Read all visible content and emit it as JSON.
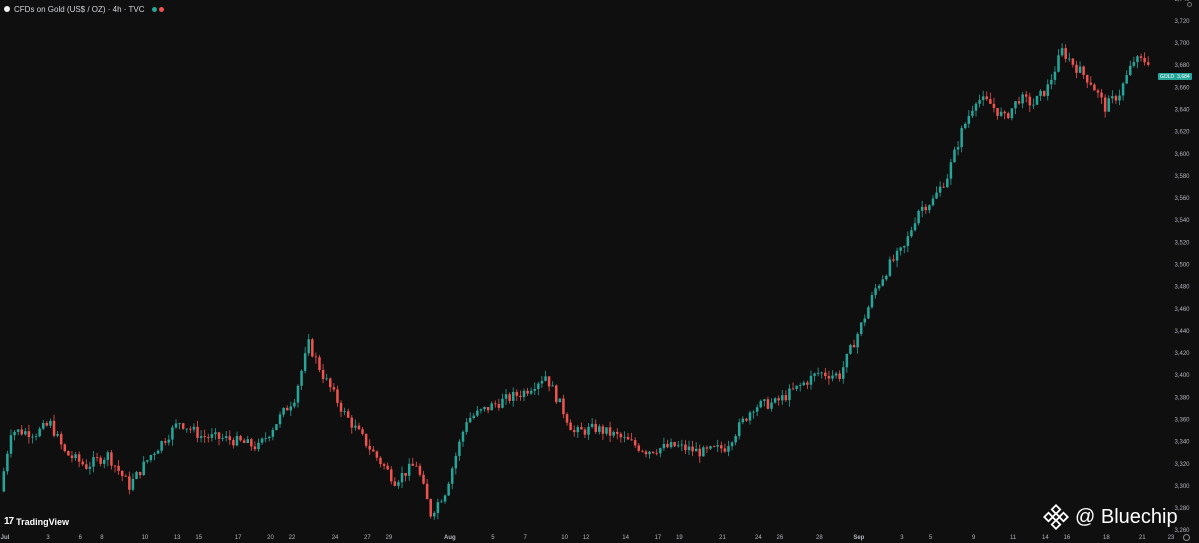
{
  "header": {
    "title": "CFDs on Gold (US$ / OZ) · 4h · TVC",
    "colors": [
      "#26a69a",
      "#ef5350"
    ]
  },
  "footer": {
    "tv_mark": "17",
    "tv_brand": "TradingView",
    "watermark": "@ Bluechip"
  },
  "price_tag": {
    "symbol": "GOLD",
    "value": "3,684"
  },
  "icons": [
    "scroll-icon",
    "gear-icon",
    "binance-diamond-icon"
  ],
  "colors": {
    "background": "#0f0f0f",
    "up": "#26a69a",
    "down": "#ef5350",
    "axis_text": "#b2b5be"
  },
  "chart_data": {
    "type": "candlestick",
    "title": "CFDs on Gold (US$ / OZ) · 4h · TVC",
    "xlabel": "",
    "ylabel": "",
    "ylim": [
      3262,
      3738
    ],
    "y_ticks": [
      "3,260",
      "3,280",
      "3,300",
      "3,320",
      "3,340",
      "3,360",
      "3,380",
      "3,400",
      "3,420",
      "3,440",
      "3,460",
      "3,480",
      "3,500",
      "3,520",
      "3,540",
      "3,560",
      "3,580",
      "3,600",
      "3,620",
      "3,640",
      "3,660",
      "3,680",
      "3,700",
      "3,720",
      "3,740"
    ],
    "x_tick_labels": [
      {
        "i": 0,
        "label": "Jul"
      },
      {
        "i": 12,
        "label": "3"
      },
      {
        "i": 21,
        "label": "6"
      },
      {
        "i": 27,
        "label": "8"
      },
      {
        "i": 39,
        "label": "10"
      },
      {
        "i": 48,
        "label": "13"
      },
      {
        "i": 54,
        "label": "15"
      },
      {
        "i": 65,
        "label": "17"
      },
      {
        "i": 74,
        "label": "20"
      },
      {
        "i": 80,
        "label": "22"
      },
      {
        "i": 92,
        "label": "24"
      },
      {
        "i": 101,
        "label": "27"
      },
      {
        "i": 107,
        "label": "29"
      },
      {
        "i": 124,
        "label": "Aug"
      },
      {
        "i": 136,
        "label": "5"
      },
      {
        "i": 145,
        "label": "7"
      },
      {
        "i": 156,
        "label": "10"
      },
      {
        "i": 162,
        "label": "12"
      },
      {
        "i": 173,
        "label": "14"
      },
      {
        "i": 182,
        "label": "17"
      },
      {
        "i": 188,
        "label": "19"
      },
      {
        "i": 200,
        "label": "21"
      },
      {
        "i": 210,
        "label": "24"
      },
      {
        "i": 216,
        "label": "26"
      },
      {
        "i": 227,
        "label": "28"
      },
      {
        "i": 238,
        "label": "Sep"
      },
      {
        "i": 250,
        "label": "3"
      },
      {
        "i": 258,
        "label": "5"
      },
      {
        "i": 270,
        "label": "9"
      },
      {
        "i": 281,
        "label": "11"
      },
      {
        "i": 290,
        "label": "14"
      },
      {
        "i": 296,
        "label": "16"
      },
      {
        "i": 307,
        "label": "18"
      },
      {
        "i": 317,
        "label": "21"
      },
      {
        "i": 325,
        "label": "23"
      }
    ],
    "last_price": 3684,
    "series": [
      {
        "path_points": [
          [
            0,
            3295
          ],
          [
            3,
            3350
          ],
          [
            10,
            3348
          ],
          [
            14,
            3356
          ],
          [
            18,
            3330
          ],
          [
            24,
            3318
          ],
          [
            30,
            3328
          ],
          [
            36,
            3300
          ],
          [
            42,
            3328
          ],
          [
            50,
            3358
          ],
          [
            56,
            3345
          ],
          [
            64,
            3342
          ],
          [
            72,
            3335
          ],
          [
            76,
            3353
          ],
          [
            82,
            3380
          ],
          [
            86,
            3428
          ],
          [
            90,
            3400
          ],
          [
            96,
            3365
          ],
          [
            104,
            3330
          ],
          [
            110,
            3305
          ],
          [
            116,
            3320
          ],
          [
            120,
            3275
          ],
          [
            124,
            3295
          ],
          [
            130,
            3360
          ],
          [
            138,
            3374
          ],
          [
            146,
            3385
          ],
          [
            152,
            3400
          ],
          [
            160,
            3348
          ],
          [
            166,
            3352
          ],
          [
            172,
            3345
          ],
          [
            180,
            3332
          ],
          [
            188,
            3336
          ],
          [
            196,
            3330
          ],
          [
            202,
            3335
          ],
          [
            210,
            3372
          ],
          [
            216,
            3375
          ],
          [
            222,
            3388
          ],
          [
            228,
            3402
          ],
          [
            234,
            3400
          ],
          [
            240,
            3445
          ],
          [
            244,
            3478
          ],
          [
            248,
            3500
          ],
          [
            252,
            3515
          ],
          [
            256,
            3550
          ],
          [
            260,
            3558
          ],
          [
            264,
            3580
          ],
          [
            268,
            3620
          ],
          [
            272,
            3650
          ],
          [
            276,
            3645
          ],
          [
            280,
            3632
          ],
          [
            284,
            3650
          ],
          [
            288,
            3645
          ],
          [
            292,
            3660
          ],
          [
            296,
            3693
          ],
          [
            300,
            3678
          ],
          [
            304,
            3665
          ],
          [
            308,
            3642
          ],
          [
            312,
            3655
          ],
          [
            316,
            3684
          ]
        ]
      }
    ]
  }
}
